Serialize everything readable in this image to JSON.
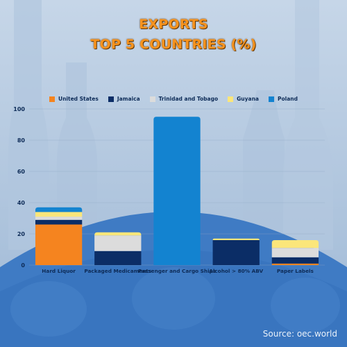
{
  "title_line1": "EXPORTS",
  "title_line2": "TOP 5 COUNTRIES (%)",
  "source": "Source: oec.world",
  "colors": {
    "United States": "#f5841f",
    "Jamaica": "#0b2d66",
    "Trinidad and Tobago": "#dcdcdc",
    "Guyana": "#fbe67a",
    "Poland": "#1383d0"
  },
  "chart_data": {
    "type": "bar",
    "stacked": true,
    "title": "EXPORTS TOP 5 COUNTRIES (%)",
    "xlabel": "",
    "ylabel": "",
    "ylim": [
      0,
      100
    ],
    "yticks": [
      0,
      20,
      40,
      60,
      80,
      100
    ],
    "grid": true,
    "legend_position": "top",
    "categories": [
      "Hard Liquor",
      "Packaged Medicaments",
      "Passenger and Cargo Ships",
      "Alcohol > 80% ABV",
      "Paper Labels"
    ],
    "series": [
      {
        "name": "United States",
        "values": [
          26,
          0,
          0,
          0,
          1
        ]
      },
      {
        "name": "Jamaica",
        "values": [
          3,
          9,
          0,
          16,
          4
        ]
      },
      {
        "name": "Trinidad and Tobago",
        "values": [
          2,
          10,
          0,
          0,
          6
        ]
      },
      {
        "name": "Guyana",
        "values": [
          3,
          2,
          0,
          1,
          5
        ]
      },
      {
        "name": "Poland",
        "values": [
          3,
          0,
          95,
          0,
          0
        ]
      }
    ]
  }
}
